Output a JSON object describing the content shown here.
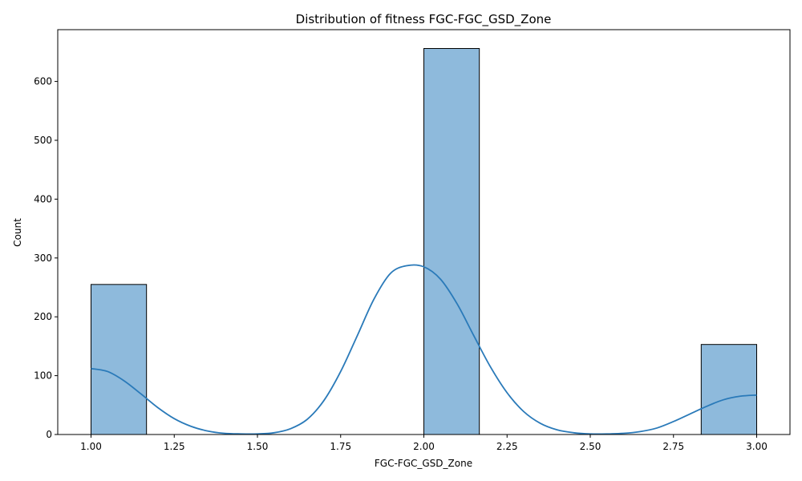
{
  "chart_data": {
    "type": "bar",
    "title": "Distribution of fitness FGC-FGC_GSD_Zone",
    "xlabel": "FGC-FGC_GSD_Zone",
    "ylabel": "Count",
    "xlim": [
      0.9,
      3.1
    ],
    "ylim": [
      0,
      688
    ],
    "x_ticks": [
      1.0,
      1.25,
      1.5,
      1.75,
      2.0,
      2.25,
      2.5,
      2.75,
      3.0
    ],
    "x_tick_labels": [
      "1.00",
      "1.25",
      "1.50",
      "1.75",
      "2.00",
      "2.25",
      "2.50",
      "2.75",
      "3.00"
    ],
    "y_ticks": [
      0,
      100,
      200,
      300,
      400,
      500,
      600
    ],
    "y_tick_labels": [
      "0",
      "100",
      "200",
      "300",
      "400",
      "500",
      "600"
    ],
    "bins": [
      {
        "x0": 1.0,
        "x1": 1.1667,
        "count": 255
      },
      {
        "x0": 1.1667,
        "x1": 1.3333,
        "count": 0
      },
      {
        "x0": 1.3333,
        "x1": 1.5,
        "count": 0
      },
      {
        "x0": 1.5,
        "x1": 1.6667,
        "count": 0
      },
      {
        "x0": 1.6667,
        "x1": 1.8333,
        "count": 0
      },
      {
        "x0": 1.8333,
        "x1": 2.0,
        "count": 0
      },
      {
        "x0": 2.0,
        "x1": 2.1667,
        "count": 656
      },
      {
        "x0": 2.1667,
        "x1": 2.3333,
        "count": 0
      },
      {
        "x0": 2.3333,
        "x1": 2.5,
        "count": 0
      },
      {
        "x0": 2.5,
        "x1": 2.6667,
        "count": 0
      },
      {
        "x0": 2.6667,
        "x1": 2.8333,
        "count": 0
      },
      {
        "x0": 2.8333,
        "x1": 3.0,
        "count": 153
      }
    ],
    "kde": {
      "x": [
        1.0,
        1.05,
        1.1,
        1.15,
        1.2,
        1.25,
        1.3,
        1.35,
        1.4,
        1.45,
        1.5,
        1.55,
        1.6,
        1.65,
        1.7,
        1.75,
        1.8,
        1.85,
        1.9,
        1.95,
        2.0,
        2.05,
        2.1,
        2.15,
        2.2,
        2.25,
        2.3,
        2.35,
        2.4,
        2.45,
        2.5,
        2.55,
        2.6,
        2.65,
        2.7,
        2.75,
        2.8,
        2.85,
        2.9,
        2.95,
        3.0
      ],
      "y": [
        112,
        107,
        91,
        69,
        46,
        27,
        14,
        6,
        2,
        1,
        1,
        3,
        10,
        26,
        58,
        107,
        168,
        230,
        274,
        287,
        285,
        264,
        222,
        168,
        115,
        71,
        39,
        19,
        8,
        3,
        1,
        1,
        2,
        5,
        11,
        22,
        35,
        48,
        59,
        65,
        67
      ]
    },
    "style": {
      "bar_fill": "#8ebadc",
      "bar_edge": "#000000",
      "kde_color": "#2a7ab9"
    },
    "grid": false,
    "legend": "none"
  }
}
